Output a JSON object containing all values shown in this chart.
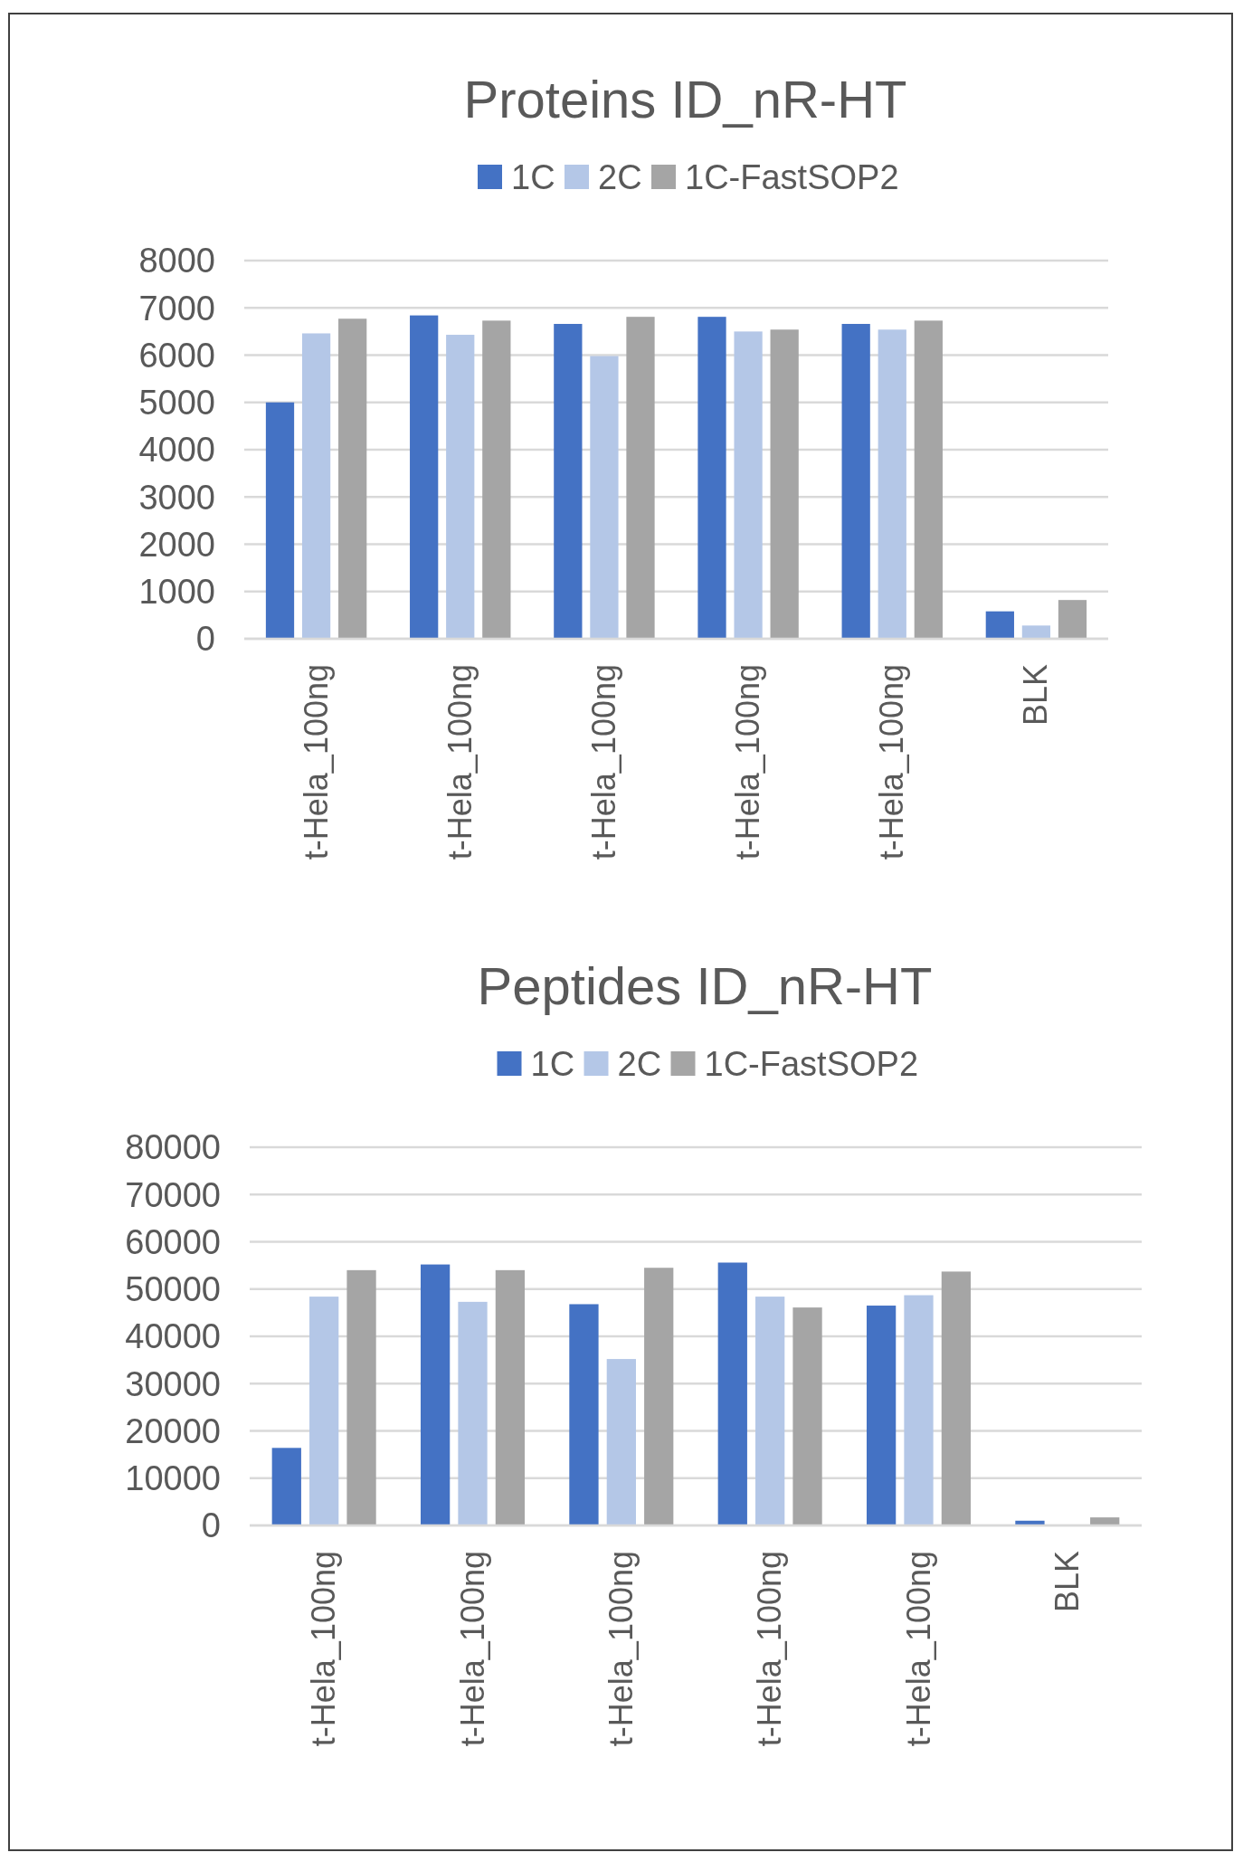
{
  "chart_data": [
    {
      "type": "bar",
      "title": "Proteins ID_nR-HT",
      "categories": [
        "t-Hela_100ng",
        "t-Hela_100ng",
        "t-Hela_100ng",
        "t-Hela_100ng",
        "t-Hela_100ng",
        "BLK"
      ],
      "series": [
        {
          "name": "1C",
          "color": "#4472c4",
          "values": [
            5000,
            6840,
            6660,
            6810,
            6660,
            580
          ]
        },
        {
          "name": "2C",
          "color": "#b4c7e7",
          "values": [
            6460,
            6430,
            5980,
            6500,
            6540,
            280
          ]
        },
        {
          "name": "1C-FastSOP2",
          "color": "#a5a5a5",
          "values": [
            6770,
            6730,
            6810,
            6540,
            6730,
            820
          ]
        }
      ],
      "ylim": [
        0,
        8000
      ],
      "yticks": [
        0,
        1000,
        2000,
        3000,
        4000,
        5000,
        6000,
        7000,
        8000
      ],
      "grid": "y",
      "legend": "top"
    },
    {
      "type": "bar",
      "title": "Peptides ID_nR-HT",
      "categories": [
        "t-Hela_100ng",
        "t-Hela_100ng",
        "t-Hela_100ng",
        "t-Hela_100ng",
        "t-Hela_100ng",
        "BLK"
      ],
      "series": [
        {
          "name": "1C",
          "color": "#4472c4",
          "values": [
            16400,
            55200,
            46800,
            55600,
            46500,
            1000
          ]
        },
        {
          "name": "2C",
          "color": "#b4c7e7",
          "values": [
            48400,
            47300,
            35200,
            48400,
            48700,
            0
          ]
        },
        {
          "name": "1C-FastSOP2",
          "color": "#a5a5a5",
          "values": [
            54000,
            54000,
            54500,
            46100,
            53700,
            1700
          ]
        }
      ],
      "ylim": [
        0,
        80000
      ],
      "yticks": [
        0,
        10000,
        20000,
        30000,
        40000,
        50000,
        60000,
        70000,
        80000
      ],
      "grid": "y",
      "legend": "top"
    }
  ]
}
